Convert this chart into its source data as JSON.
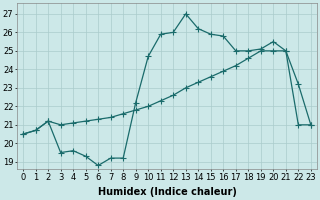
{
  "xlabel": "Humidex (Indice chaleur)",
  "background_color": "#cce8e8",
  "grid_color": "#aacccc",
  "line_color": "#1a6b6b",
  "x_ticks": [
    0,
    1,
    2,
    3,
    4,
    5,
    6,
    7,
    8,
    9,
    10,
    11,
    12,
    13,
    14,
    15,
    16,
    17,
    18,
    19,
    20,
    21,
    22,
    23
  ],
  "y_ticks": [
    19,
    20,
    21,
    22,
    23,
    24,
    25,
    26,
    27
  ],
  "ylim": [
    18.6,
    27.6
  ],
  "xlim": [
    -0.5,
    23.5
  ],
  "line1_x": [
    0,
    1,
    2,
    3,
    4,
    5,
    6,
    7,
    8,
    9,
    10,
    11,
    12,
    13,
    14,
    15,
    16,
    17,
    18,
    19,
    20,
    21,
    22,
    23
  ],
  "line1_y": [
    20.5,
    20.7,
    21.2,
    19.5,
    19.6,
    19.3,
    18.8,
    19.2,
    19.2,
    22.2,
    24.7,
    25.9,
    26.0,
    27.0,
    26.2,
    25.9,
    25.8,
    25.0,
    25.0,
    25.1,
    25.5,
    25.0,
    23.2,
    21.0
  ],
  "line2_x": [
    0,
    1,
    2,
    3,
    4,
    5,
    6,
    7,
    8,
    9,
    10,
    11,
    12,
    13,
    14,
    15,
    16,
    17,
    18,
    19,
    20,
    21,
    22,
    23
  ],
  "line2_y": [
    20.5,
    20.7,
    21.2,
    21.0,
    21.1,
    21.2,
    21.3,
    21.4,
    21.6,
    21.8,
    22.0,
    22.3,
    22.6,
    23.0,
    23.3,
    23.6,
    23.9,
    24.2,
    24.6,
    25.0,
    25.0,
    25.0,
    21.0,
    21.0
  ],
  "markersize": 4,
  "linewidth": 0.9,
  "xlabel_fontsize": 7,
  "tick_fontsize": 6
}
